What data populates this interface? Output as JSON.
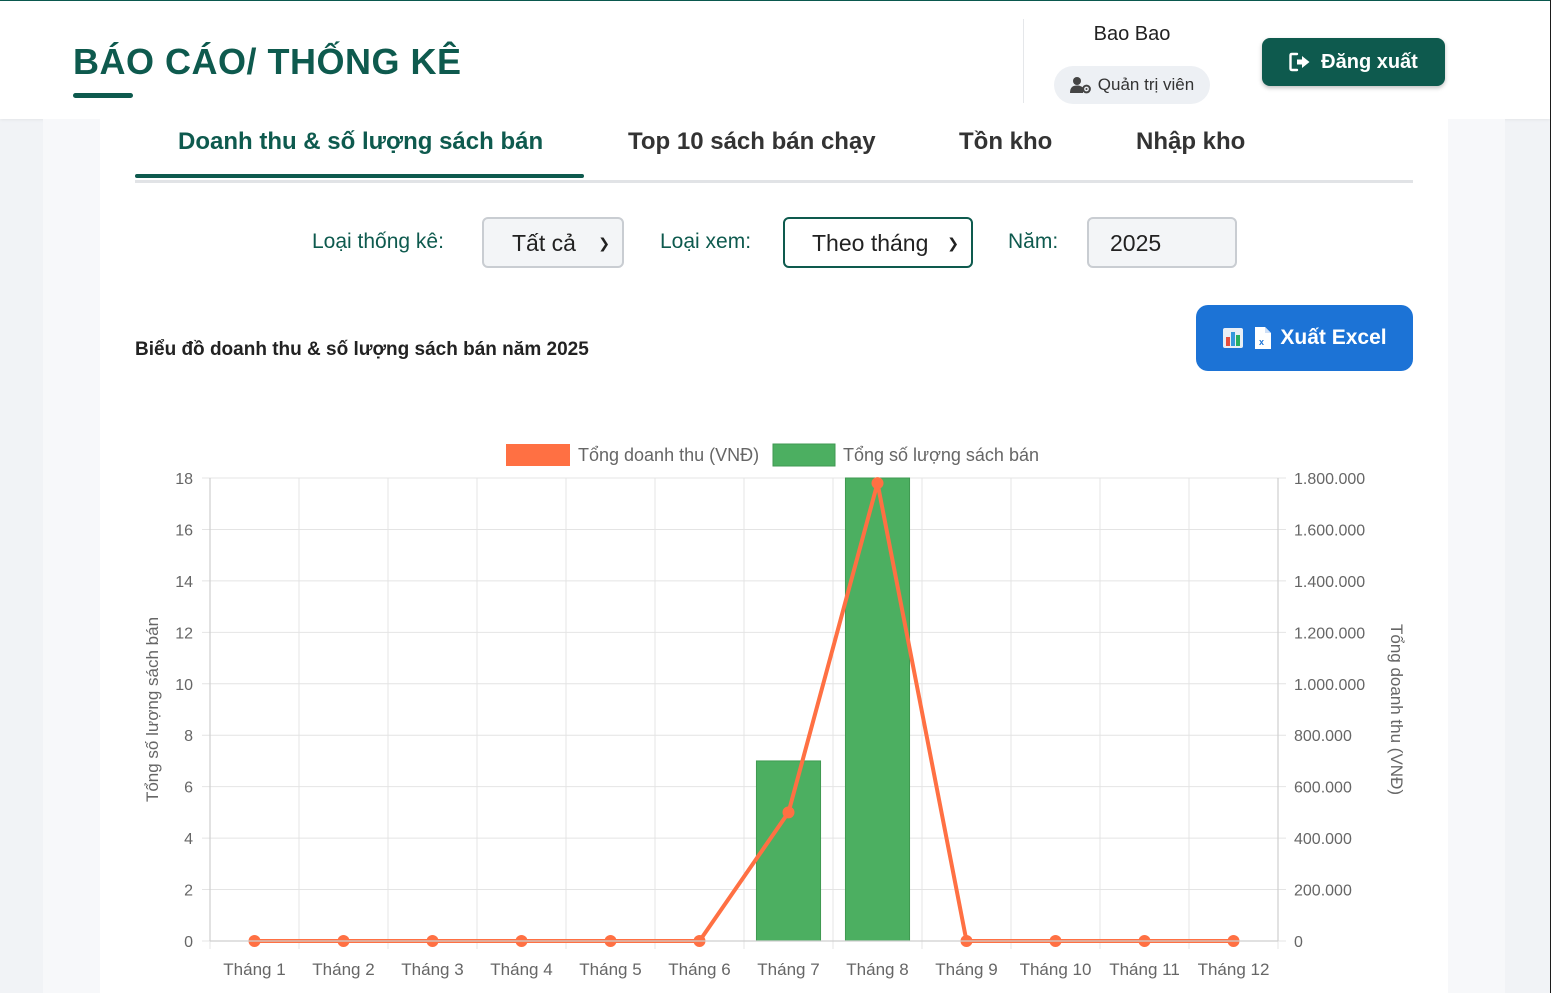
{
  "header": {
    "title": "BÁO CÁO/ THỐNG KÊ",
    "user_name": "Bao Bao",
    "role": "Quản trị viên",
    "role_icon": "user-gear-icon",
    "logout_label": "Đăng xuất",
    "logout_icon": "sign-out-icon"
  },
  "tabs": [
    {
      "label": "Doanh thu & số lượng sách bán",
      "active": true
    },
    {
      "label": "Top 10 sách bán chạy",
      "active": false
    },
    {
      "label": "Tồn kho",
      "active": false
    },
    {
      "label": "Nhập kho",
      "active": false
    }
  ],
  "filters": {
    "stat_type_label": "Loại thống kê:",
    "stat_type_value": "Tất cả",
    "view_type_label": "Loại xem:",
    "view_type_value": "Theo tháng",
    "year_label": "Năm:",
    "year_value": "2025"
  },
  "chart_caption": "Biểu đồ doanh thu & số lượng sách bán năm 2025",
  "export_button": {
    "label": "Xuất Excel",
    "icons": [
      "chart-icon",
      "excel-file-icon"
    ]
  },
  "colors": {
    "primary": "#0e5a4e",
    "revenue_line": "#ff7043",
    "quantity_bar": "#4caf61",
    "export_button": "#1c73d6"
  },
  "chart_data": {
    "type": "bar",
    "categories": [
      "Tháng 1",
      "Tháng 2",
      "Tháng 3",
      "Tháng 4",
      "Tháng 5",
      "Tháng 6",
      "Tháng 7",
      "Tháng 8",
      "Tháng 9",
      "Tháng 10",
      "Tháng 11",
      "Tháng 12"
    ],
    "series": [
      {
        "name": "Tổng doanh thu (VNĐ)",
        "type": "line",
        "axis": "right",
        "values": [
          0,
          0,
          0,
          0,
          0,
          0,
          500000,
          1780000,
          0,
          0,
          0,
          0
        ]
      },
      {
        "name": "Tổng số lượng sách bán",
        "type": "bar",
        "axis": "left",
        "values": [
          0,
          0,
          0,
          0,
          0,
          0,
          7,
          18,
          0,
          0,
          0,
          0
        ]
      }
    ],
    "y_left": {
      "label": "Tổng số lượng sách bán",
      "range": [
        0,
        18
      ],
      "ticks": [
        "0",
        "2",
        "4",
        "6",
        "8",
        "10",
        "12",
        "14",
        "16",
        "18"
      ]
    },
    "y_right": {
      "label": "Tổng doanh thu (VNĐ)",
      "range": [
        0,
        1800000
      ],
      "ticks": [
        "0",
        "200.000",
        "400.000",
        "600.000",
        "800.000",
        "1.000.000",
        "1.200.000",
        "1.400.000",
        "1.600.000",
        "1.800.000"
      ]
    },
    "grid": true,
    "legend": "top-center"
  }
}
